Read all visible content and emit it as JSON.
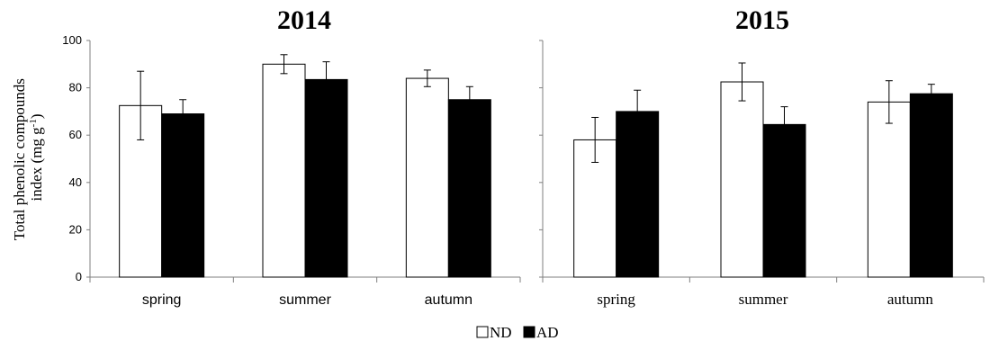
{
  "chart_data": {
    "type": "bar",
    "y_label_line1": "Total phenolic compounds",
    "y_label_line2": "index (mg g",
    "y_label_sup": "-1",
    "y_label_close": ")",
    "ylim": [
      0,
      100
    ],
    "y_ticks": [
      "0",
      "20",
      "40",
      "60",
      "80",
      "100"
    ],
    "legend": {
      "position": "bottom-center",
      "items": [
        {
          "name": "ND",
          "color": "#ffffff"
        },
        {
          "name": "AD",
          "color": "#000000"
        }
      ]
    },
    "panels": [
      {
        "title": "2014",
        "categories": [
          "spring",
          "summer",
          "autumn"
        ],
        "series": [
          {
            "name": "ND",
            "color": "#ffffff",
            "values": [
              72.5,
              90.0,
              84.0
            ],
            "errors": [
              14.5,
              4.0,
              3.5
            ]
          },
          {
            "name": "AD",
            "color": "#000000",
            "values": [
              69.0,
              83.5,
              75.0
            ],
            "errors": [
              6.0,
              7.5,
              5.5
            ]
          }
        ]
      },
      {
        "title": "2015",
        "categories": [
          "spring",
          "summer",
          "autumn"
        ],
        "series": [
          {
            "name": "ND",
            "color": "#ffffff",
            "values": [
              58.0,
              82.5,
              74.0
            ],
            "errors": [
              9.5,
              8.0,
              9.0
            ]
          },
          {
            "name": "AD",
            "color": "#000000",
            "values": [
              70.0,
              64.5,
              77.5
            ],
            "errors": [
              9.0,
              7.5,
              4.0
            ]
          }
        ]
      }
    ]
  }
}
